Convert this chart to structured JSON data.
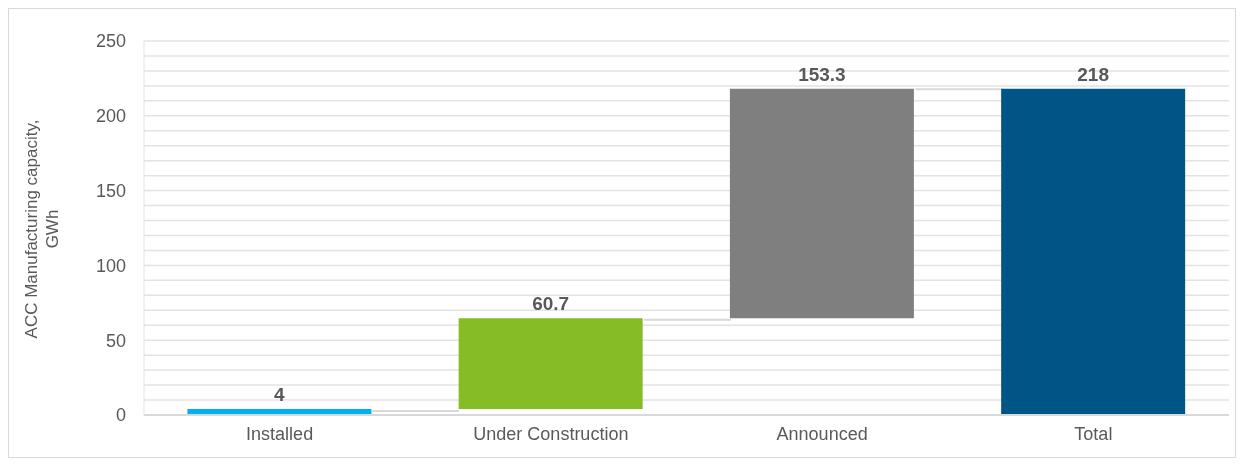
{
  "chart_data": {
    "type": "bar",
    "ylabel": "ACC Manufacturing capacity, GWh",
    "categories": [
      "Installed",
      "Under Construction",
      "Announced",
      "Total"
    ],
    "values": [
      4,
      60.7,
      153.3,
      218
    ],
    "base": [
      0,
      4,
      64.7,
      0
    ],
    "colors": [
      "#00b0f0",
      "#86bc25",
      "#7f7f7f",
      "#005587"
    ],
    "data_labels": true,
    "ylim": [
      0,
      250
    ],
    "yticks": [
      0,
      {
        "value": 10,
        "label": null
      },
      {
        "value": 20,
        "label": null
      },
      {
        "value": 30,
        "label": null
      },
      {
        "value": 40,
        "label": null
      },
      50,
      {
        "value": 60,
        "label": null
      },
      {
        "value": 70,
        "label": null
      },
      {
        "value": 80,
        "label": null
      },
      {
        "value": 90,
        "label": null
      },
      100,
      {
        "value": 110,
        "label": null
      },
      {
        "value": 120,
        "label": null
      },
      {
        "value": 130,
        "label": null
      },
      {
        "value": 140,
        "label": null
      },
      150,
      {
        "value": 160,
        "label": null
      },
      {
        "value": 170,
        "label": null
      },
      {
        "value": 180,
        "label": null
      },
      {
        "value": 190,
        "label": null
      },
      200,
      {
        "value": 210,
        "label": null
      },
      {
        "value": 220,
        "label": null
      },
      {
        "value": 230,
        "label": null
      },
      {
        "value": 240,
        "label": null
      },
      250
    ],
    "grid": "y"
  }
}
